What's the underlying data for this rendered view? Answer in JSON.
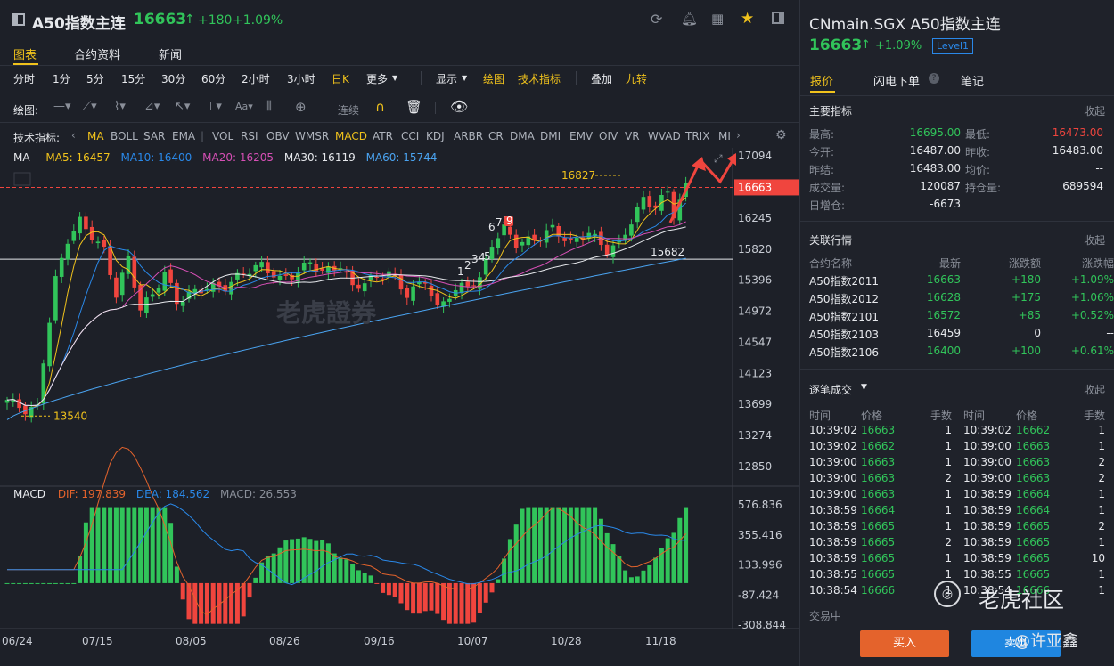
{
  "header": {
    "icon": "panel-icon",
    "name": "A50指数主连",
    "price": "16663",
    "arrow": "↑",
    "change": "+180",
    "pct": "+1.09%"
  },
  "tabs": [
    "图表",
    "合约资料",
    "新闻"
  ],
  "periods": [
    "分时",
    "1分",
    "5分",
    "15分",
    "30分",
    "60分",
    "2小时",
    "3小时",
    "日K",
    "更多",
    "显示",
    "绘图",
    "技术指标",
    "叠加",
    "九转"
  ],
  "draw_label": "绘图:",
  "draw_lianxu": "连续",
  "ind_label": "技术指标:",
  "indicators": [
    "MA",
    "BOLL",
    "SAR",
    "EMA",
    "|",
    "VOL",
    "RSI",
    "OBV",
    "WMSR",
    "MACD",
    "ATR",
    "CCI",
    "KDJ",
    "ARBR",
    "CR",
    "DMA",
    "DMI",
    "EMV",
    "OIV",
    "VR",
    "WVAD",
    "TRIX",
    "MI"
  ],
  "ma_legend": {
    "t": "MA",
    "ma5": "MA5: 16457",
    "ma10": "MA10: 16400",
    "ma20": "MA20: 16205",
    "ma30": "MA30: 16119",
    "ma60": "MA60: 15744"
  },
  "macd_legend": {
    "t": "MACD",
    "dif": "DIF: 197.839",
    "dea": "DEA: 184.562",
    "macd": "MACD: 26.553"
  },
  "price_axis": [
    "17094",
    "16663",
    "16245",
    "15820",
    "15396",
    "14972",
    "14547",
    "14123",
    "13699",
    "13274",
    "12850"
  ],
  "macd_axis": [
    "576.836",
    "355.416",
    "133.996",
    "-87.424",
    "-308.844"
  ],
  "dates": [
    "06/24",
    "07/15",
    "08/05",
    "08/26",
    "09/16",
    "10/07",
    "10/28",
    "11/18"
  ],
  "ann": {
    "high": "16827",
    "low": "13540",
    "line": "15682",
    "nine": "9",
    "n6": "6",
    "n7": "7",
    "n8": "8",
    "n1": "1",
    "n2": "2",
    "n3": "3",
    "n4": "4",
    "n5": "5"
  },
  "watermark": "老虎證券",
  "colors": {
    "up": "#31c45a",
    "down": "#f0453e",
    "accent": "#f0c21c",
    "blue": "#2a88e8",
    "orange": "#e4632c"
  },
  "right": {
    "title": "CNmain.SGX A50指数主连",
    "price": "16663",
    "arrow": "↑",
    "pct": "+1.09%",
    "level": "Level1",
    "tabs": [
      "报价",
      "闪电下单",
      "笔记"
    ],
    "main_label": "主要指标",
    "collapse": "收起",
    "metrics": [
      [
        "最高:",
        "16695.00",
        "最低:",
        "16473.00"
      ],
      [
        "今开:",
        "16487.00",
        "昨收:",
        "16483.00"
      ],
      [
        "昨结:",
        "16483.00",
        "均价:",
        "--"
      ],
      [
        "成交量:",
        "120087",
        "持仓量:",
        "689594"
      ],
      [
        "日增仓:",
        "-6673",
        "",
        ""
      ]
    ],
    "related_label": "关联行情",
    "related_head": [
      "合约名称",
      "最新",
      "涨跌额",
      "涨跌幅"
    ],
    "related": [
      [
        "A50指数2011",
        "16663",
        "+180",
        "+1.09%"
      ],
      [
        "A50指数2012",
        "16628",
        "+175",
        "+1.06%"
      ],
      [
        "A50指数2101",
        "16572",
        "+85",
        "+0.52%"
      ],
      [
        "A50指数2103",
        "16459",
        "0",
        "--"
      ],
      [
        "A50指数2106",
        "16400",
        "+100",
        "+0.61%"
      ]
    ],
    "ticks_label": "逐笔成交",
    "ticks_head": [
      "时间",
      "价格",
      "手数",
      "时间",
      "价格",
      "手数"
    ],
    "ticks": [
      [
        "10:39:02",
        "16663",
        "1",
        "10:39:02",
        "16662",
        "1"
      ],
      [
        "10:39:02",
        "16662",
        "1",
        "10:39:00",
        "16663",
        "1"
      ],
      [
        "10:39:00",
        "16663",
        "1",
        "10:39:00",
        "16663",
        "2"
      ],
      [
        "10:39:00",
        "16663",
        "2",
        "10:39:00",
        "16663",
        "2"
      ],
      [
        "10:39:00",
        "16663",
        "1",
        "10:38:59",
        "16664",
        "1"
      ],
      [
        "10:38:59",
        "16664",
        "1",
        "10:38:59",
        "16664",
        "1"
      ],
      [
        "10:38:59",
        "16665",
        "1",
        "10:38:59",
        "16665",
        "2"
      ],
      [
        "10:38:59",
        "16665",
        "2",
        "10:38:59",
        "16665",
        "1"
      ],
      [
        "10:38:59",
        "16665",
        "1",
        "10:38:59",
        "16665",
        "10"
      ],
      [
        "10:38:55",
        "16665",
        "1",
        "10:38:55",
        "16665",
        "1"
      ],
      [
        "10:38:54",
        "16666",
        "1",
        "10:38:54",
        "16666",
        "1"
      ]
    ],
    "status": "交易中",
    "buy": "买入",
    "sell": "卖出",
    "community": "老虎社区",
    "user": "@许亚鑫"
  }
}
